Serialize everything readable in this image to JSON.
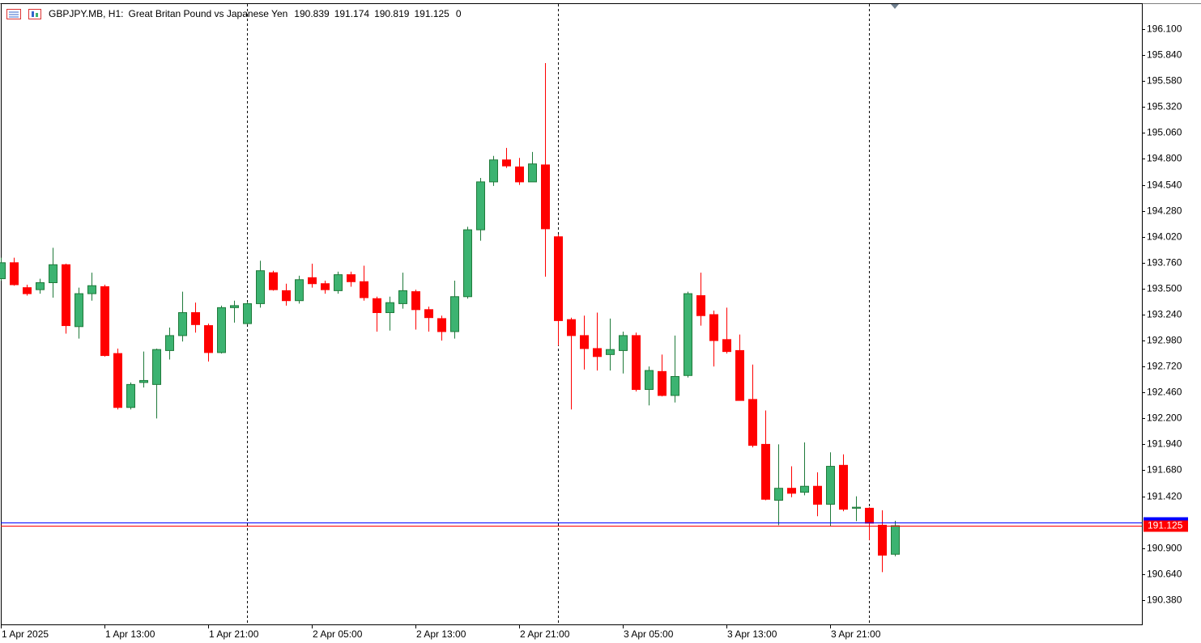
{
  "chart_data": {
    "type": "candlestick",
    "title": "GBPJPY.MB, H1:",
    "subtitle": "Great Britan Pound vs Japanese Yen",
    "info_values": [
      190.839,
      191.174,
      190.819,
      191.125,
      0
    ],
    "categories": [
      "1 Apr 2025",
      null,
      null,
      null,
      null,
      null,
      null,
      null,
      "1 Apr 13:00",
      null,
      null,
      null,
      null,
      null,
      null,
      null,
      "1 Apr 21:00",
      null,
      null,
      null,
      null,
      null,
      null,
      null,
      "2 Apr 05:00",
      null,
      null,
      null,
      null,
      null,
      null,
      null,
      "2 Apr 13:00",
      null,
      null,
      null,
      null,
      null,
      null,
      null,
      "2 Apr 21:00",
      null,
      null,
      null,
      null,
      null,
      null,
      null,
      "3 Apr 05:00",
      null,
      null,
      null,
      null,
      null,
      null,
      null,
      "3 Apr 13:00",
      null,
      null,
      null,
      null,
      null,
      null,
      null,
      "3 Apr 21:00",
      null,
      null,
      null,
      null,
      null
    ],
    "open": [
      193.6,
      193.76,
      193.51,
      193.49,
      193.56,
      193.74,
      193.12,
      193.45,
      193.52,
      192.85,
      192.31,
      192.56,
      192.54,
      192.88,
      193.03,
      193.26,
      193.13,
      192.86,
      193.31,
      193.15,
      193.35,
      193.66,
      193.48,
      193.38,
      193.61,
      193.55,
      193.48,
      193.64,
      193.57,
      193.4,
      193.26,
      193.35,
      193.47,
      193.29,
      193.2,
      193.07,
      193.42,
      194.09,
      194.57,
      194.79,
      194.72,
      194.57,
      194.74,
      194.02,
      193.19,
      193.03,
      192.9,
      192.84,
      192.88,
      193.03,
      192.49,
      192.67,
      192.43,
      192.63,
      193.43,
      193.24,
      192.99,
      192.88,
      192.39,
      191.94,
      191.38,
      191.5,
      191.46,
      191.52,
      191.34,
      191.73,
      191.3,
      191.3,
      191.13,
      190.839
    ],
    "high": [
      193.81,
      193.81,
      193.54,
      193.6,
      193.91,
      193.75,
      193.51,
      193.66,
      193.54,
      192.9,
      192.56,
      192.87,
      192.9,
      193.11,
      193.47,
      193.36,
      193.15,
      193.33,
      193.38,
      193.37,
      193.78,
      193.68,
      193.55,
      193.63,
      193.75,
      193.58,
      193.67,
      193.67,
      193.73,
      193.42,
      193.42,
      193.66,
      193.49,
      193.32,
      193.23,
      193.58,
      194.12,
      194.61,
      194.83,
      194.91,
      194.81,
      194.87,
      195.76,
      194.04,
      193.21,
      193.23,
      193.26,
      193.2,
      193.07,
      193.06,
      192.72,
      192.84,
      193.03,
      193.47,
      193.66,
      193.28,
      193.31,
      193.04,
      192.74,
      192.28,
      191.94,
      191.72,
      191.96,
      191.66,
      191.86,
      191.84,
      191.42,
      191.31,
      191.28,
      191.174
    ],
    "low": [
      193.58,
      193.53,
      193.43,
      193.45,
      193.41,
      193.05,
      193.0,
      193.38,
      192.82,
      192.29,
      192.29,
      192.51,
      192.2,
      192.79,
      192.97,
      193.06,
      192.77,
      192.85,
      193.16,
      193.14,
      193.31,
      193.48,
      193.33,
      193.35,
      193.51,
      193.45,
      193.45,
      193.52,
      193.38,
      193.07,
      193.08,
      193.3,
      193.09,
      193.07,
      192.98,
      193.0,
      193.4,
      193.98,
      194.53,
      194.71,
      194.54,
      194.57,
      193.62,
      192.93,
      192.29,
      192.69,
      192.68,
      192.68,
      192.65,
      192.47,
      192.33,
      192.42,
      192.36,
      192.61,
      193.13,
      192.72,
      192.85,
      192.38,
      191.91,
      191.38,
      191.13,
      191.41,
      191.43,
      191.22,
      191.12,
      191.27,
      191.17,
      190.98,
      190.66,
      190.819
    ],
    "close": [
      193.76,
      193.54,
      193.45,
      193.56,
      193.74,
      193.13,
      193.45,
      193.53,
      192.83,
      192.31,
      192.54,
      192.58,
      192.89,
      193.03,
      193.26,
      193.14,
      192.86,
      193.31,
      193.33,
      193.35,
      193.68,
      193.49,
      193.38,
      193.59,
      193.55,
      193.49,
      193.64,
      193.57,
      193.41,
      193.26,
      193.36,
      193.48,
      193.29,
      193.21,
      193.07,
      193.42,
      194.09,
      194.57,
      194.79,
      194.73,
      194.57,
      194.75,
      194.1,
      193.18,
      193.03,
      192.9,
      192.82,
      192.89,
      193.03,
      192.49,
      192.68,
      192.43,
      192.62,
      193.45,
      193.23,
      192.98,
      192.87,
      192.38,
      191.93,
      191.39,
      191.5,
      191.45,
      191.52,
      191.34,
      191.72,
      191.29,
      191.31,
      191.15,
      190.83,
      191.125
    ],
    "up_color": "#3cb371",
    "up_wick_color": "#1f7a3a",
    "down_color": "#ff0000",
    "ylim": [
      190.128,
      196.36
    ],
    "yticks": [
      {
        "value": 196.1,
        "label": "196.100"
      },
      {
        "value": 195.84,
        "label": "195.840"
      },
      {
        "value": 195.58,
        "label": "195.580"
      },
      {
        "value": 195.32,
        "label": "195.320"
      },
      {
        "value": 195.06,
        "label": "195.060"
      },
      {
        "value": 194.8,
        "label": "194.800"
      },
      {
        "value": 194.54,
        "label": "194.540"
      },
      {
        "value": 194.28,
        "label": "194.280"
      },
      {
        "value": 194.02,
        "label": "194.020"
      },
      {
        "value": 193.76,
        "label": "193.760"
      },
      {
        "value": 193.5,
        "label": "193.500"
      },
      {
        "value": 193.24,
        "label": "193.240"
      },
      {
        "value": 192.98,
        "label": "192.980"
      },
      {
        "value": 192.72,
        "label": "192.720"
      },
      {
        "value": 192.46,
        "label": "192.460"
      },
      {
        "value": 192.2,
        "label": "192.200"
      },
      {
        "value": 191.94,
        "label": "191.940"
      },
      {
        "value": 191.68,
        "label": "191.680"
      },
      {
        "value": 191.42,
        "label": "191.420"
      },
      {
        "value": 190.9,
        "label": "190.900"
      },
      {
        "value": 190.64,
        "label": "190.640"
      },
      {
        "value": 190.38,
        "label": "190.380"
      }
    ],
    "bid_price": {
      "value": 191.125,
      "label": "191.125"
    },
    "bid_color": "#ff0000",
    "ask_price": 191.16,
    "ask_color": "#0000ff",
    "period_separators_at": [
      19,
      43,
      67
    ],
    "grid": false
  }
}
